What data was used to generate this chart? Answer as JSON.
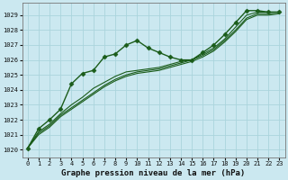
{
  "xlabel": "Graphe pression niveau de la mer (hPa)",
  "background_color": "#cbe8f0",
  "grid_color": "#aad4dc",
  "line_color": "#1a5c1a",
  "xlim": [
    -0.5,
    23.5
  ],
  "ylim": [
    1019.5,
    1029.8
  ],
  "yticks": [
    1020,
    1021,
    1022,
    1023,
    1024,
    1025,
    1026,
    1027,
    1028,
    1029
  ],
  "xticks": [
    0,
    1,
    2,
    3,
    4,
    5,
    6,
    7,
    8,
    9,
    10,
    11,
    12,
    13,
    14,
    15,
    16,
    17,
    18,
    19,
    20,
    21,
    22,
    23
  ],
  "series": [
    {
      "x": [
        0,
        1,
        2,
        3,
        4,
        5,
        6,
        7,
        8,
        9,
        10,
        11,
        12,
        13,
        14,
        15,
        16,
        17,
        18,
        19,
        20,
        21,
        22,
        23
      ],
      "y": [
        1020.1,
        1021.4,
        1022.0,
        1022.7,
        1024.4,
        1025.1,
        1025.3,
        1026.2,
        1026.4,
        1027.0,
        1027.3,
        1026.8,
        1026.5,
        1026.2,
        1026.0,
        1026.0,
        1026.5,
        1027.0,
        1027.7,
        1028.5,
        1029.3,
        1029.3,
        1029.2,
        1029.2
      ],
      "marker": "D",
      "markersize": 2.5,
      "linewidth": 1.0,
      "has_marker": true
    },
    {
      "x": [
        0,
        1,
        2,
        3,
        4,
        5,
        6,
        7,
        8,
        9,
        10,
        11,
        12,
        13,
        14,
        15,
        16,
        17,
        18,
        19,
        20,
        21,
        22,
        23
      ],
      "y": [
        1020.1,
        1021.2,
        1021.7,
        1022.4,
        1023.0,
        1023.5,
        1024.1,
        1024.5,
        1024.9,
        1025.2,
        1025.3,
        1025.4,
        1025.5,
        1025.7,
        1025.9,
        1026.0,
        1026.4,
        1026.8,
        1027.4,
        1028.2,
        1029.0,
        1029.2,
        1029.2,
        1029.2
      ],
      "marker": null,
      "markersize": 0,
      "linewidth": 0.8,
      "has_marker": false
    },
    {
      "x": [
        0,
        1,
        2,
        3,
        4,
        5,
        6,
        7,
        8,
        9,
        10,
        11,
        12,
        13,
        14,
        15,
        16,
        17,
        18,
        19,
        20,
        21,
        22,
        23
      ],
      "y": [
        1020.1,
        1021.1,
        1021.6,
        1022.3,
        1022.8,
        1023.3,
        1023.8,
        1024.3,
        1024.7,
        1025.0,
        1025.2,
        1025.3,
        1025.4,
        1025.6,
        1025.8,
        1026.0,
        1026.3,
        1026.7,
        1027.3,
        1028.0,
        1028.8,
        1029.1,
        1029.1,
        1029.1
      ],
      "marker": null,
      "markersize": 0,
      "linewidth": 0.8,
      "has_marker": false
    },
    {
      "x": [
        0,
        1,
        2,
        3,
        4,
        5,
        6,
        7,
        8,
        9,
        10,
        11,
        12,
        13,
        14,
        15,
        16,
        17,
        18,
        19,
        20,
        21,
        22,
        23
      ],
      "y": [
        1020.1,
        1021.0,
        1021.5,
        1022.2,
        1022.7,
        1023.2,
        1023.7,
        1024.2,
        1024.6,
        1024.9,
        1025.1,
        1025.2,
        1025.3,
        1025.5,
        1025.7,
        1025.9,
        1026.2,
        1026.6,
        1027.2,
        1027.9,
        1028.7,
        1029.0,
        1029.0,
        1029.1
      ],
      "marker": null,
      "markersize": 0,
      "linewidth": 0.8,
      "has_marker": false
    }
  ]
}
